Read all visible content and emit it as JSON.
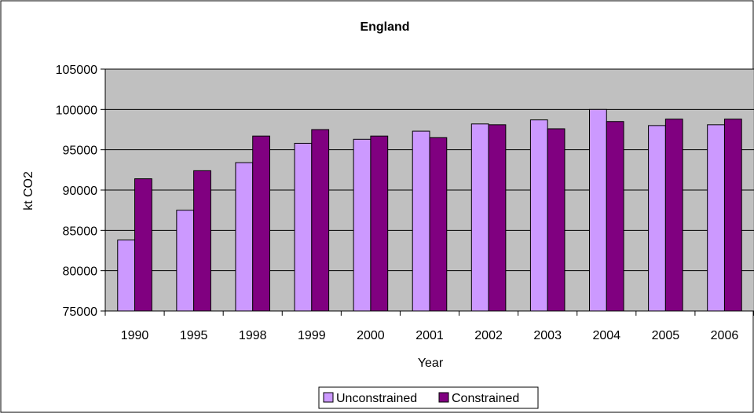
{
  "chart_data": {
    "type": "bar",
    "title": "England",
    "xlabel": "Year",
    "ylabel": "kt CO2",
    "categories": [
      "1990",
      "1995",
      "1998",
      "1999",
      "2000",
      "2001",
      "2002",
      "2003",
      "2004",
      "2005",
      "2006"
    ],
    "series": [
      {
        "name": "Unconstrained",
        "color": "#cc99ff",
        "values": [
          83800,
          87500,
          93400,
          95800,
          96300,
          97300,
          98200,
          98700,
          100000,
          98000,
          98100
        ]
      },
      {
        "name": "Constrained",
        "color": "#800080",
        "values": [
          91400,
          92400,
          96700,
          97500,
          96700,
          96500,
          98100,
          97600,
          98500,
          98800,
          98800
        ]
      }
    ],
    "ylim": [
      75000,
      105000
    ],
    "yticks": [
      "75000",
      "80000",
      "85000",
      "90000",
      "95000",
      "100000",
      "105000"
    ],
    "grid": true,
    "plot_background": "#c0c0c0",
    "legend_position": "bottom"
  }
}
